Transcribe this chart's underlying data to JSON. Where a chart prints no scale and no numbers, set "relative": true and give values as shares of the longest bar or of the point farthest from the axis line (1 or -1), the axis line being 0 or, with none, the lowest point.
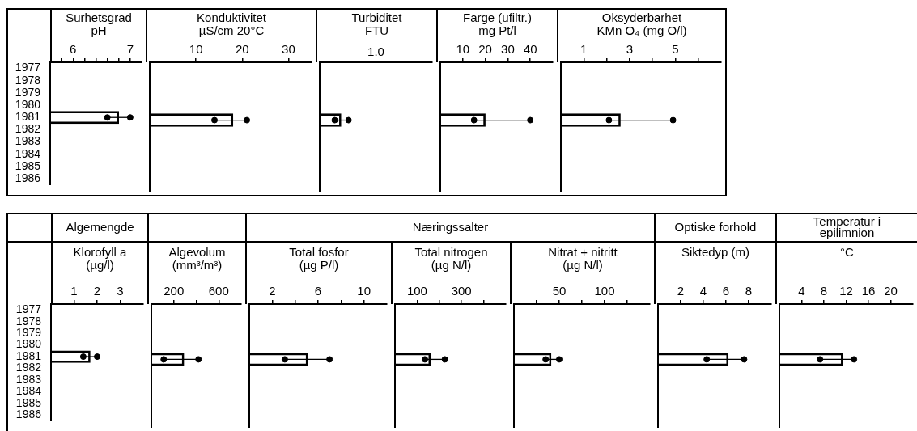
{
  "chart_data": [
    {
      "type": "bar",
      "orientation": "horizontal",
      "title": "Surhetsgrad",
      "xlabel": "pH",
      "marker": "circle",
      "categories": [
        "1977",
        "1978",
        "1979",
        "1980",
        "1981",
        "1982",
        "1983",
        "1984",
        "1985",
        "1986"
      ],
      "xlim": [
        5.6,
        7.2
      ],
      "xticks": [
        {
          "value": 5.8,
          "label": null
        },
        6,
        {
          "value": 6.2,
          "label": null
        },
        {
          "value": 6.4,
          "label": null
        },
        {
          "value": 6.6,
          "label": null
        },
        {
          "value": 6.8,
          "label": null
        },
        7
      ],
      "series": [
        {
          "type": "bar",
          "color": "#000000",
          "values": [
            null,
            null,
            null,
            null,
            6.8,
            null,
            null,
            null,
            null,
            null
          ]
        },
        {
          "type": "scatter",
          "color": "#000000",
          "values": [
            null,
            null,
            null,
            null,
            6.6,
            null,
            null,
            null,
            null,
            null
          ]
        },
        {
          "type": "scatter",
          "color": "#000000",
          "values": [
            null,
            null,
            null,
            null,
            7.0,
            null,
            null,
            null,
            null,
            null
          ]
        }
      ]
    },
    {
      "type": "bar",
      "orientation": "horizontal",
      "title": "Konduktivitet",
      "xlabel": "µS/cm 20°C",
      "marker": "circle",
      "tick_labels": "x",
      "categories": [
        "1977",
        "1978",
        "1979",
        "1980",
        "1981",
        "1982",
        "1983",
        "1984",
        "1985",
        "1986"
      ],
      "xlim": [
        0,
        35
      ],
      "xticks": [
        10,
        20,
        30
      ],
      "series": [
        {
          "type": "bar",
          "color": "#000000",
          "values": [
            null,
            null,
            null,
            null,
            18,
            null,
            null,
            null,
            null,
            null
          ]
        },
        {
          "type": "scatter",
          "color": "#000000",
          "values": [
            null,
            null,
            null,
            null,
            14,
            null,
            null,
            null,
            null,
            null
          ]
        },
        {
          "type": "scatter",
          "color": "#000000",
          "values": [
            null,
            null,
            null,
            null,
            21,
            null,
            null,
            null,
            null,
            null
          ]
        }
      ]
    },
    {
      "type": "bar",
      "orientation": "horizontal",
      "relative": true,
      "title": "Turbiditet",
      "xlabel": "FTU",
      "annotations": [
        "1.0"
      ],
      "marker": "circle",
      "tick_labels": false,
      "categories": [
        "1977",
        "1978",
        "1979",
        "1980",
        "1981",
        "1982",
        "1983",
        "1984",
        "1985",
        "1986"
      ],
      "series": [
        {
          "type": "bar",
          "color": "#000000",
          "values": [
            null,
            null,
            null,
            null,
            0.74,
            null,
            null,
            null,
            null,
            null
          ]
        },
        {
          "type": "scatter",
          "color": "#000000",
          "values": [
            null,
            null,
            null,
            null,
            0.52,
            null,
            null,
            null,
            null,
            null
          ]
        },
        {
          "type": "scatter",
          "color": "#000000",
          "values": [
            null,
            null,
            null,
            null,
            1,
            null,
            null,
            null,
            null,
            null
          ]
        }
      ]
    },
    {
      "type": "bar",
      "orientation": "horizontal",
      "title": "Farge (ufiltr.)",
      "xlabel": "mg Pt/l",
      "marker": "circle",
      "tick_labels": "x",
      "categories": [
        "1977",
        "1978",
        "1979",
        "1980",
        "1981",
        "1982",
        "1983",
        "1984",
        "1985",
        "1986"
      ],
      "xlim": [
        0,
        50
      ],
      "xticks": [
        10,
        20,
        30,
        40
      ],
      "series": [
        {
          "type": "bar",
          "color": "#000000",
          "values": [
            null,
            null,
            null,
            null,
            20,
            null,
            null,
            null,
            null,
            null
          ]
        },
        {
          "type": "scatter",
          "color": "#000000",
          "values": [
            null,
            null,
            null,
            null,
            15,
            null,
            null,
            null,
            null,
            null
          ]
        },
        {
          "type": "scatter",
          "color": "#000000",
          "values": [
            null,
            null,
            null,
            null,
            40,
            null,
            null,
            null,
            null,
            null
          ]
        }
      ]
    },
    {
      "type": "bar",
      "orientation": "horizontal",
      "title": "Oksyderbarhet",
      "xlabel": "KMn O₄ (mg O/l)",
      "marker": "circle",
      "tick_labels": "x",
      "categories": [
        "1977",
        "1978",
        "1979",
        "1980",
        "1981",
        "1982",
        "1983",
        "1984",
        "1985",
        "1986"
      ],
      "xlim": [
        0,
        7
      ],
      "xticks": [
        1,
        {
          "value": 2,
          "label": null
        },
        3,
        {
          "value": 4,
          "label": null
        },
        5,
        {
          "value": 6,
          "label": null
        }
      ],
      "series": [
        {
          "type": "bar",
          "color": "#000000",
          "values": [
            null,
            null,
            null,
            null,
            2.6,
            null,
            null,
            null,
            null,
            null
          ]
        },
        {
          "type": "scatter",
          "color": "#000000",
          "values": [
            null,
            null,
            null,
            null,
            2.1,
            null,
            null,
            null,
            null,
            null
          ]
        },
        {
          "type": "scatter",
          "color": "#000000",
          "values": [
            null,
            null,
            null,
            null,
            4.9,
            null,
            null,
            null,
            null,
            null
          ]
        }
      ]
    },
    {
      "type": "bar",
      "orientation": "horizontal",
      "title": "Klorofyll a",
      "xlabel": "(µg/l)",
      "annotations": [
        "Algemengde"
      ],
      "marker": "circle",
      "categories": [
        "1977",
        "1978",
        "1979",
        "1980",
        "1981",
        "1982",
        "1983",
        "1984",
        "1985",
        "1986"
      ],
      "xlim": [
        0,
        4
      ],
      "xticks": [
        1,
        2,
        3
      ],
      "series": [
        {
          "type": "bar",
          "color": "#000000",
          "values": [
            null,
            null,
            null,
            null,
            1.7,
            null,
            null,
            null,
            null,
            null
          ]
        },
        {
          "type": "scatter",
          "color": "#000000",
          "values": [
            null,
            null,
            null,
            null,
            1.4,
            null,
            null,
            null,
            null,
            null
          ]
        },
        {
          "type": "scatter",
          "color": "#000000",
          "values": [
            null,
            null,
            null,
            null,
            2.0,
            null,
            null,
            null,
            null,
            null
          ]
        }
      ]
    },
    {
      "type": "bar",
      "orientation": "horizontal",
      "title": "Algevolum",
      "xlabel": "(mm³/m³)",
      "marker": "circle",
      "tick_labels": "x",
      "categories": [
        "1977",
        "1978",
        "1979",
        "1980",
        "1981",
        "1982",
        "1983",
        "1984",
        "1985",
        "1986"
      ],
      "xlim": [
        0,
        800
      ],
      "xticks": [
        200,
        {
          "value": 400,
          "label": null
        },
        600
      ],
      "series": [
        {
          "type": "bar",
          "color": "#000000",
          "values": [
            null,
            null,
            null,
            null,
            290,
            null,
            null,
            null,
            null,
            null
          ]
        },
        {
          "type": "scatter",
          "color": "#000000",
          "values": [
            null,
            null,
            null,
            null,
            110,
            null,
            null,
            null,
            null,
            null
          ]
        },
        {
          "type": "scatter",
          "color": "#000000",
          "values": [
            null,
            null,
            null,
            null,
            420,
            null,
            null,
            null,
            null,
            null
          ]
        }
      ]
    },
    {
      "type": "bar",
      "orientation": "horizontal",
      "title": "Total fosfor",
      "xlabel": "(µg P/l)",
      "annotations": [
        "Næringssalter"
      ],
      "marker": "circle",
      "tick_labels": "x",
      "categories": [
        "1977",
        "1978",
        "1979",
        "1980",
        "1981",
        "1982",
        "1983",
        "1984",
        "1985",
        "1986"
      ],
      "xlim": [
        0,
        12
      ],
      "xticks": [
        2,
        {
          "value": 4,
          "label": null
        },
        6,
        {
          "value": 8,
          "label": null
        },
        10
      ],
      "series": [
        {
          "type": "bar",
          "color": "#000000",
          "values": [
            null,
            null,
            null,
            null,
            5.1,
            null,
            null,
            null,
            null,
            null
          ]
        },
        {
          "type": "scatter",
          "color": "#000000",
          "values": [
            null,
            null,
            null,
            null,
            3.1,
            null,
            null,
            null,
            null,
            null
          ]
        },
        {
          "type": "scatter",
          "color": "#000000",
          "values": [
            null,
            null,
            null,
            null,
            7.0,
            null,
            null,
            null,
            null,
            null
          ]
        }
      ]
    },
    {
      "type": "bar",
      "orientation": "horizontal",
      "title": "Total nitrogen",
      "xlabel": "(µg N/l)",
      "marker": "circle",
      "tick_labels": "x",
      "categories": [
        "1977",
        "1978",
        "1979",
        "1980",
        "1981",
        "1982",
        "1983",
        "1984",
        "1985",
        "1986"
      ],
      "xlim": [
        0,
        500
      ],
      "xticks": [
        100,
        {
          "value": 200,
          "label": null
        },
        300,
        {
          "value": 400,
          "label": null
        }
      ],
      "series": [
        {
          "type": "bar",
          "color": "#000000",
          "values": [
            null,
            null,
            null,
            null,
            160,
            null,
            null,
            null,
            null,
            null
          ]
        },
        {
          "type": "scatter",
          "color": "#000000",
          "values": [
            null,
            null,
            null,
            null,
            135,
            null,
            null,
            null,
            null,
            null
          ]
        },
        {
          "type": "scatter",
          "color": "#000000",
          "values": [
            null,
            null,
            null,
            null,
            225,
            null,
            null,
            null,
            null,
            null
          ]
        }
      ]
    },
    {
      "type": "bar",
      "orientation": "horizontal",
      "title": "Nitrat + nitritt",
      "xlabel": "(µg N/l)",
      "marker": "circle",
      "tick_labels": "x",
      "categories": [
        "1977",
        "1978",
        "1979",
        "1980",
        "1981",
        "1982",
        "1983",
        "1984",
        "1985",
        "1986"
      ],
      "xlim": [
        0,
        150
      ],
      "xticks": [
        {
          "value": 25,
          "label": null
        },
        50,
        {
          "value": 75,
          "label": null
        },
        100,
        {
          "value": 125,
          "label": null
        }
      ],
      "series": [
        {
          "type": "bar",
          "color": "#000000",
          "values": [
            null,
            null,
            null,
            null,
            41,
            null,
            null,
            null,
            null,
            null
          ]
        },
        {
          "type": "scatter",
          "color": "#000000",
          "values": [
            null,
            null,
            null,
            null,
            35,
            null,
            null,
            null,
            null,
            null
          ]
        },
        {
          "type": "scatter",
          "color": "#000000",
          "values": [
            null,
            null,
            null,
            null,
            50,
            null,
            null,
            null,
            null,
            null
          ]
        }
      ]
    },
    {
      "type": "bar",
      "orientation": "horizontal",
      "title": "Siktedyp (m)",
      "annotations": [
        "Optiske forhold"
      ],
      "marker": "circle",
      "tick_labels": "x",
      "categories": [
        "1977",
        "1978",
        "1979",
        "1980",
        "1981",
        "1982",
        "1983",
        "1984",
        "1985",
        "1986"
      ],
      "xlim": [
        0,
        10
      ],
      "xticks": [
        2,
        4,
        6,
        8
      ],
      "series": [
        {
          "type": "bar",
          "color": "#000000",
          "values": [
            null,
            null,
            null,
            null,
            6.2,
            null,
            null,
            null,
            null,
            null
          ]
        },
        {
          "type": "scatter",
          "color": "#000000",
          "values": [
            null,
            null,
            null,
            null,
            4.3,
            null,
            null,
            null,
            null,
            null
          ]
        },
        {
          "type": "scatter",
          "color": "#000000",
          "values": [
            null,
            null,
            null,
            null,
            7.6,
            null,
            null,
            null,
            null,
            null
          ]
        }
      ]
    },
    {
      "type": "bar",
      "orientation": "horizontal",
      "xlabel": "°C",
      "annotations": [
        "Temperatur i epilimnion"
      ],
      "marker": "circle",
      "tick_labels": "x",
      "categories": [
        "1977",
        "1978",
        "1979",
        "1980",
        "1981",
        "1982",
        "1983",
        "1984",
        "1985",
        "1986"
      ],
      "xlim": [
        0,
        24
      ],
      "xticks": [
        4,
        8,
        12,
        16,
        20
      ],
      "series": [
        {
          "type": "bar",
          "color": "#000000",
          "values": [
            null,
            null,
            null,
            null,
            11.4,
            null,
            null,
            null,
            null,
            null
          ]
        },
        {
          "type": "scatter",
          "color": "#000000",
          "values": [
            null,
            null,
            null,
            null,
            7.3,
            null,
            null,
            null,
            null,
            null
          ]
        },
        {
          "type": "scatter",
          "color": "#000000",
          "values": [
            null,
            null,
            null,
            null,
            13.4,
            null,
            null,
            null,
            null,
            null
          ]
        }
      ]
    }
  ]
}
